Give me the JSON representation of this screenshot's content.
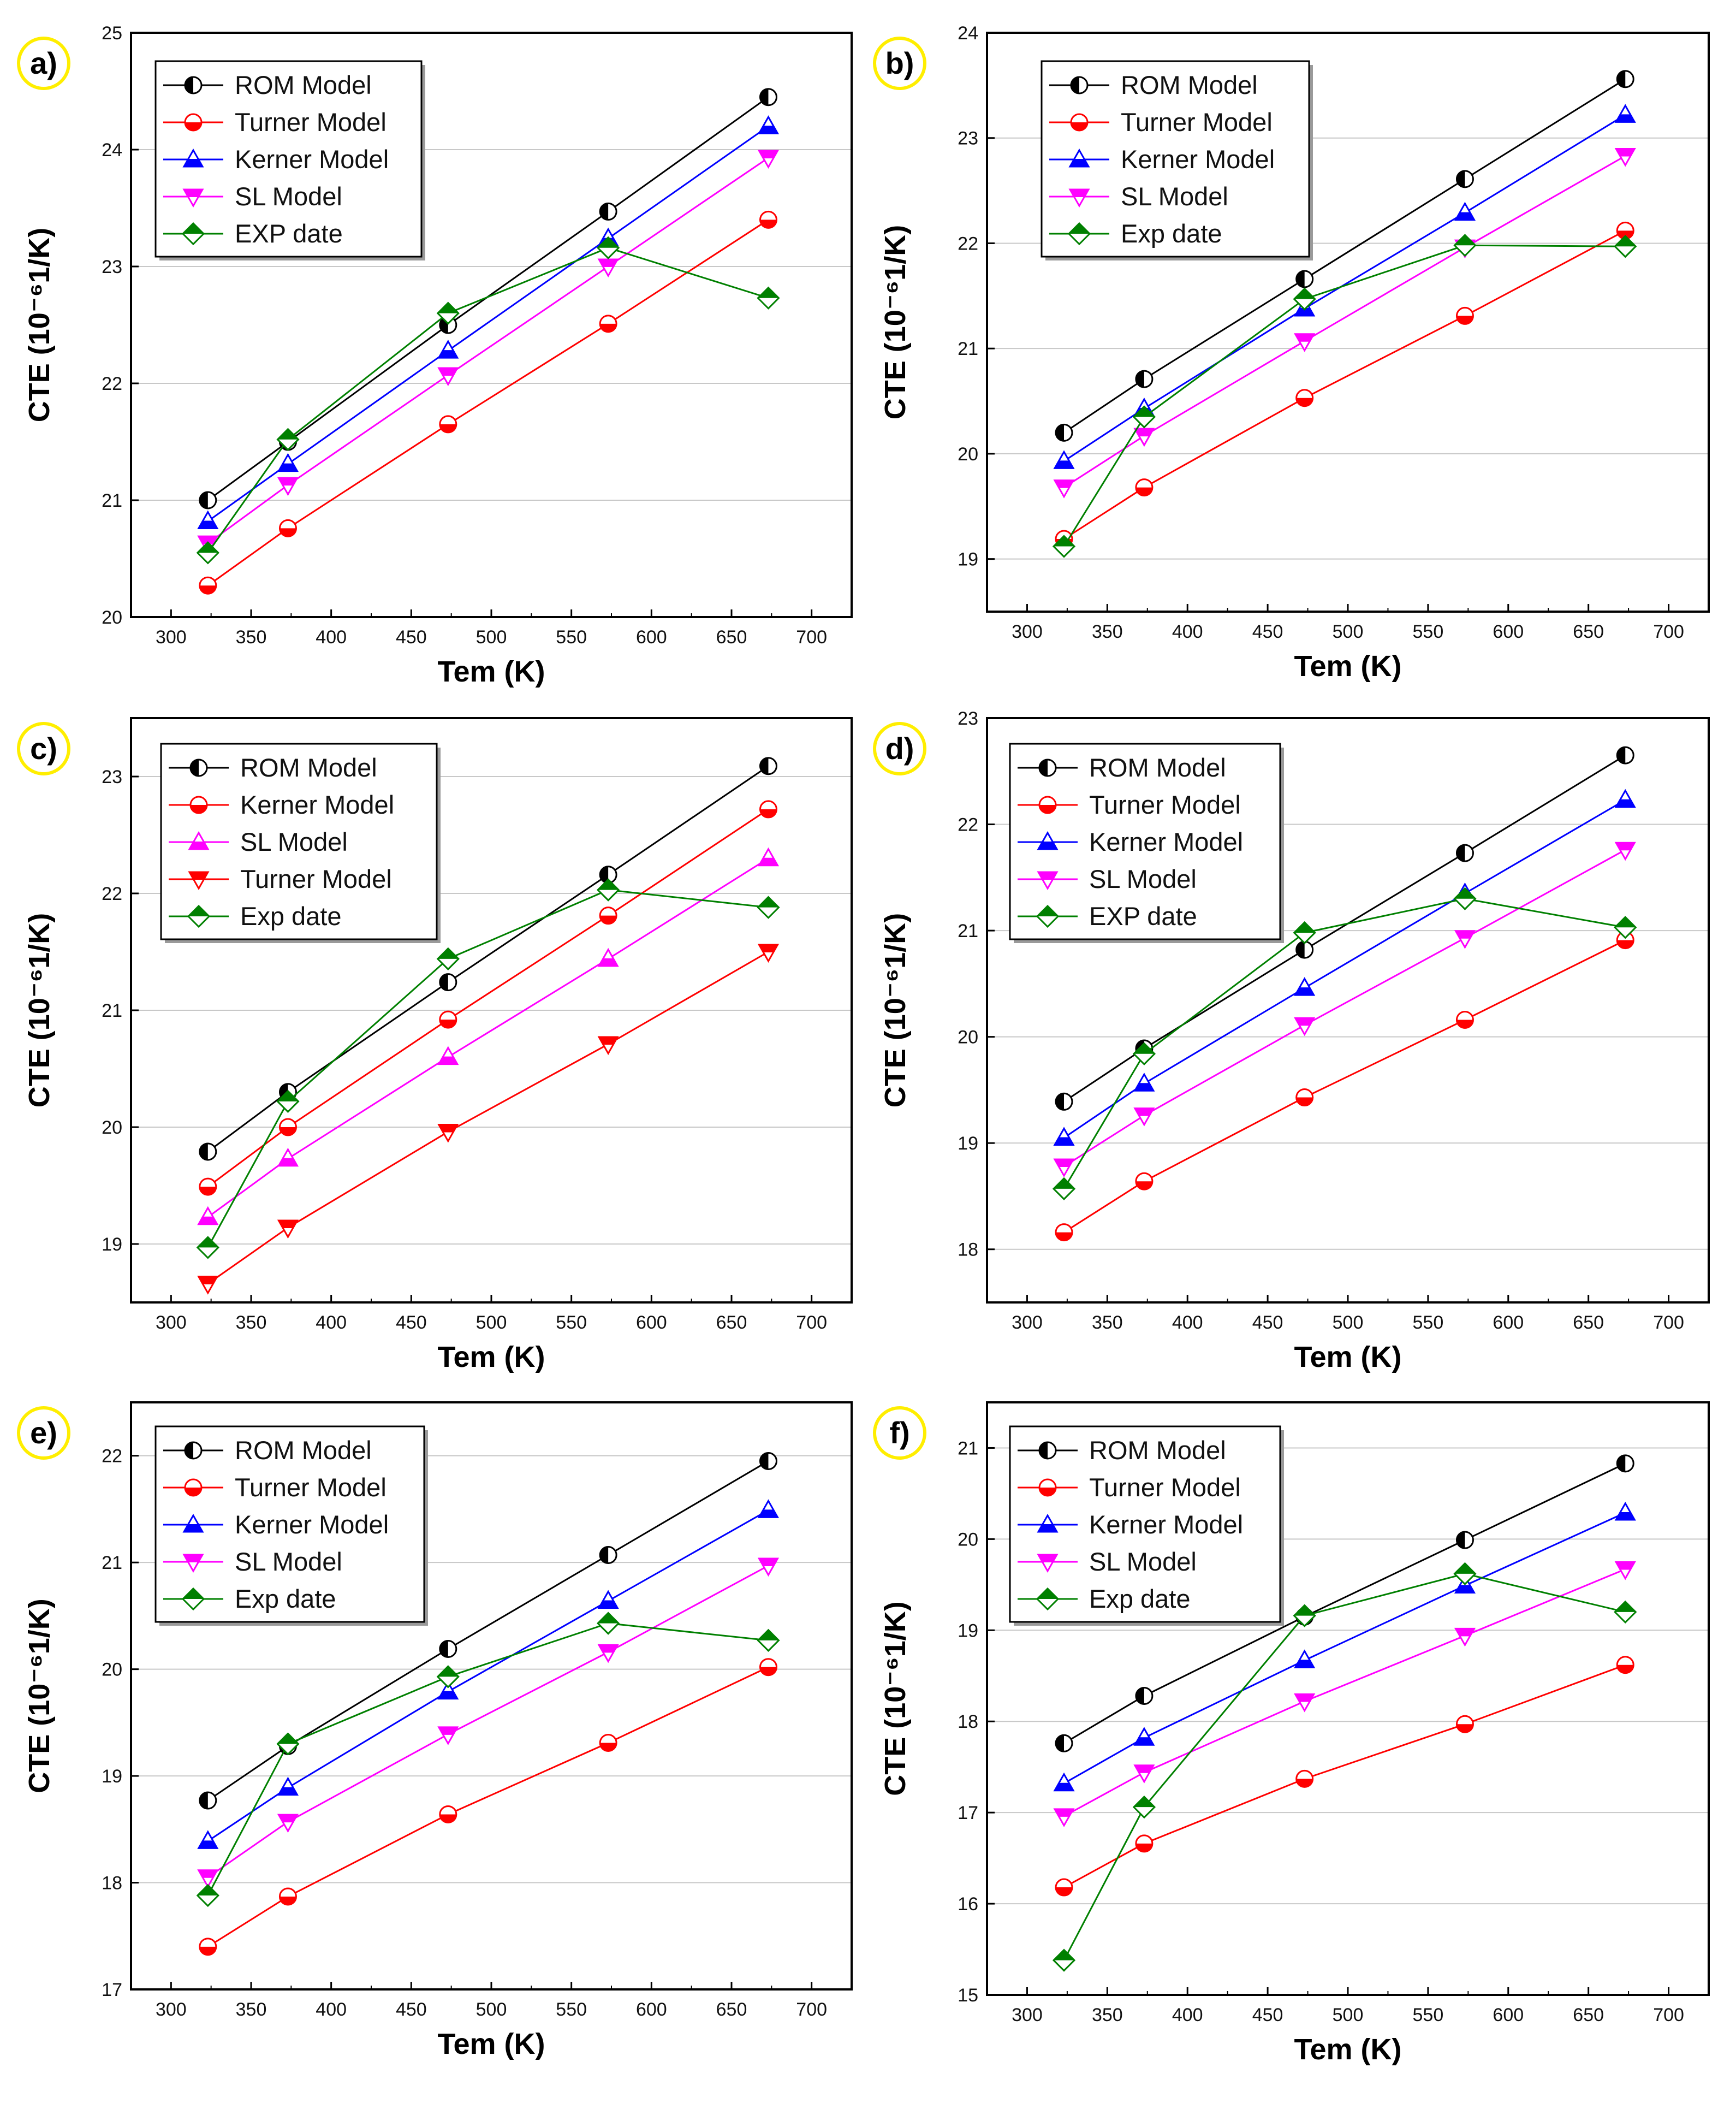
{
  "colors": {
    "ROM Model": "#000000",
    "Turner Model": "#ff0000",
    "Kerner Model": "#0000ff",
    "Kerner  Model": "#ff0000",
    "SL Model": "#ff00ff",
    "Exp date": "#008000",
    "EXP date": "#008000",
    "grid": "#c8c8c8",
    "badge": "#ffee00"
  },
  "chart_data": [
    {
      "type": "line",
      "panel": "a)",
      "xlabel": "Tem (K)",
      "ylabel": "CTE (10⁻⁶1/K)",
      "xlim": [
        275,
        725
      ],
      "ylim": [
        20,
        25
      ],
      "xticks": [
        300,
        350,
        400,
        450,
        500,
        550,
        600,
        650,
        700
      ],
      "yticks": [
        20,
        21,
        22,
        23,
        24,
        25
      ],
      "x": [
        323,
        373,
        473,
        573,
        673
      ],
      "series": [
        {
          "name": "ROM Model",
          "marker": "circle-half",
          "values": [
            21.0,
            21.5,
            22.5,
            23.47,
            24.45
          ]
        },
        {
          "name": "Turner Model",
          "marker": "circle-half-bottom",
          "values": [
            20.27,
            20.76,
            21.65,
            22.51,
            23.4
          ]
        },
        {
          "name": "Kerner Model",
          "marker": "triangle-up",
          "values": [
            20.82,
            21.31,
            22.28,
            23.24,
            24.2
          ]
        },
        {
          "name": "SL Model",
          "marker": "triangle-down",
          "values": [
            20.63,
            21.13,
            22.07,
            23.0,
            23.93
          ]
        },
        {
          "name": "EXP date",
          "marker": "diamond",
          "values": [
            20.55,
            21.52,
            22.6,
            23.16,
            22.73
          ]
        }
      ]
    },
    {
      "type": "line",
      "panel": "b)",
      "xlabel": "Tem (K)",
      "ylabel": "CTE (10⁻⁶1/K)",
      "xlim": [
        275,
        725
      ],
      "ylim": [
        18.5,
        24
      ],
      "xticks": [
        300,
        350,
        400,
        450,
        500,
        550,
        600,
        650,
        700
      ],
      "yticks": [
        19,
        20,
        21,
        22,
        23,
        24
      ],
      "x": [
        323,
        373,
        473,
        573,
        673
      ],
      "series": [
        {
          "name": "ROM Model",
          "marker": "circle-half",
          "values": [
            20.2,
            20.71,
            21.66,
            22.61,
            23.56
          ]
        },
        {
          "name": "Turner Model",
          "marker": "circle-half-bottom",
          "values": [
            19.19,
            19.68,
            20.53,
            21.31,
            22.12
          ]
        },
        {
          "name": "Kerner Model",
          "marker": "triangle-up",
          "values": [
            19.93,
            20.43,
            21.38,
            22.29,
            23.22
          ]
        },
        {
          "name": "SL Model",
          "marker": "triangle-down",
          "values": [
            19.68,
            20.17,
            21.07,
            21.96,
            22.83
          ]
        },
        {
          "name": "Exp date",
          "marker": "diamond",
          "values": [
            19.12,
            20.35,
            21.47,
            21.98,
            21.97
          ]
        }
      ]
    },
    {
      "type": "line",
      "panel": "c)",
      "xlabel": "Tem (K)",
      "ylabel": "CTE (10⁻⁶1/K)",
      "xlim": [
        275,
        725
      ],
      "ylim": [
        18.5,
        23.5
      ],
      "xticks": [
        300,
        350,
        400,
        450,
        500,
        550,
        600,
        650,
        700
      ],
      "yticks": [
        19,
        20,
        21,
        22,
        23
      ],
      "x": [
        323,
        373,
        473,
        573,
        673
      ],
      "series": [
        {
          "name": "ROM Model",
          "marker": "circle-half",
          "values": [
            19.79,
            20.3,
            21.24,
            22.16,
            23.09
          ]
        },
        {
          "name": "Kerner  Model",
          "marker": "circle-half-bottom",
          "values": [
            19.49,
            20.0,
            20.92,
            21.81,
            22.72
          ]
        },
        {
          "name": "SL Model",
          "marker": "triangle-up",
          "values": [
            19.23,
            19.73,
            20.6,
            21.44,
            22.3
          ]
        },
        {
          "name": "Turner Model",
          "marker": "triangle-down",
          "values": [
            18.66,
            19.14,
            19.96,
            20.71,
            21.5
          ]
        },
        {
          "name": "Exp date",
          "marker": "diamond",
          "values": [
            18.97,
            20.22,
            21.44,
            22.03,
            21.88
          ]
        }
      ]
    },
    {
      "type": "line",
      "panel": "d)",
      "xlabel": "Tem (K)",
      "ylabel": "CTE (10⁻⁶1/K)",
      "xlim": [
        275,
        725
      ],
      "ylim": [
        17.5,
        23
      ],
      "xticks": [
        300,
        350,
        400,
        450,
        500,
        550,
        600,
        650,
        700
      ],
      "yticks": [
        18,
        19,
        20,
        21,
        22,
        23
      ],
      "x": [
        323,
        373,
        473,
        573,
        673
      ],
      "series": [
        {
          "name": "ROM Model",
          "marker": "circle-half",
          "values": [
            19.39,
            19.89,
            20.82,
            21.73,
            22.65
          ]
        },
        {
          "name": "Turner Model",
          "marker": "circle-half-bottom",
          "values": [
            18.16,
            18.64,
            19.43,
            20.16,
            20.91
          ]
        },
        {
          "name": "Kerner Model",
          "marker": "triangle-up",
          "values": [
            19.05,
            19.56,
            20.46,
            21.35,
            22.23
          ]
        },
        {
          "name": "SL Model",
          "marker": "triangle-down",
          "values": [
            18.78,
            19.26,
            20.11,
            20.93,
            21.76
          ]
        },
        {
          "name": "EXP date",
          "marker": "diamond",
          "values": [
            18.57,
            19.84,
            20.98,
            21.3,
            21.03
          ]
        }
      ]
    },
    {
      "type": "line",
      "panel": "e)",
      "xlabel": "Tem (K)",
      "ylabel": "CTE (10⁻⁶1/K)",
      "xlim": [
        275,
        725
      ],
      "ylim": [
        17,
        22.5
      ],
      "xticks": [
        300,
        350,
        400,
        450,
        500,
        550,
        600,
        650,
        700
      ],
      "yticks": [
        17,
        18,
        19,
        20,
        21,
        22
      ],
      "x": [
        323,
        373,
        473,
        573,
        673
      ],
      "series": [
        {
          "name": "ROM Model",
          "marker": "circle-half",
          "values": [
            18.77,
            19.28,
            20.19,
            21.07,
            21.95
          ]
        },
        {
          "name": "Turner Model",
          "marker": "circle-half-bottom",
          "values": [
            17.4,
            17.87,
            18.64,
            19.31,
            20.02
          ]
        },
        {
          "name": "Kerner Model",
          "marker": "triangle-up",
          "values": [
            18.39,
            18.89,
            19.79,
            20.64,
            21.49
          ]
        },
        {
          "name": "SL Model",
          "marker": "triangle-down",
          "values": [
            18.05,
            18.57,
            19.39,
            20.16,
            20.97
          ]
        },
        {
          "name": "Exp date",
          "marker": "diamond",
          "values": [
            17.88,
            19.3,
            19.93,
            20.43,
            20.27
          ]
        }
      ]
    },
    {
      "type": "line",
      "panel": "f)",
      "xlabel": "Tem (K)",
      "ylabel": "CTE (10⁻⁶1/K)",
      "xlim": [
        275,
        725
      ],
      "ylim": [
        15,
        21.5
      ],
      "xticks": [
        300,
        350,
        400,
        450,
        500,
        550,
        600,
        650,
        700
      ],
      "yticks": [
        15,
        16,
        17,
        18,
        19,
        20,
        21
      ],
      "x": [
        323,
        373,
        473,
        573,
        673
      ],
      "series": [
        {
          "name": "ROM Model",
          "marker": "circle-half",
          "values": [
            17.76,
            18.28,
            19.15,
            19.99,
            20.83
          ]
        },
        {
          "name": "Turner Model",
          "marker": "circle-half-bottom",
          "values": [
            16.18,
            16.66,
            17.37,
            17.97,
            18.62
          ]
        },
        {
          "name": "Kerner Model",
          "marker": "triangle-up",
          "values": [
            17.32,
            17.82,
            18.67,
            19.49,
            20.29
          ]
        },
        {
          "name": "SL Model",
          "marker": "triangle-down",
          "values": [
            16.96,
            17.44,
            18.22,
            18.94,
            19.67
          ]
        },
        {
          "name": "Exp date",
          "marker": "diamond",
          "values": [
            15.38,
            17.06,
            19.16,
            19.62,
            19.2
          ]
        }
      ]
    }
  ]
}
